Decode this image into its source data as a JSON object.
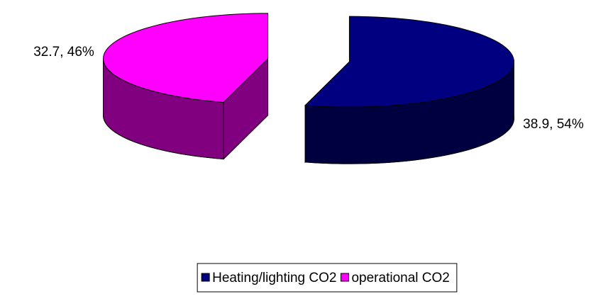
{
  "chart_data": {
    "type": "pie",
    "categories": [
      "Heating/lighting CO2",
      "operational CO2"
    ],
    "values": [
      38.9,
      32.7
    ],
    "value_labels": [
      "38.9, 54%",
      "32.7, 46%"
    ],
    "colors": [
      "#000080",
      "#ff00ff"
    ],
    "legend": "bottom"
  }
}
